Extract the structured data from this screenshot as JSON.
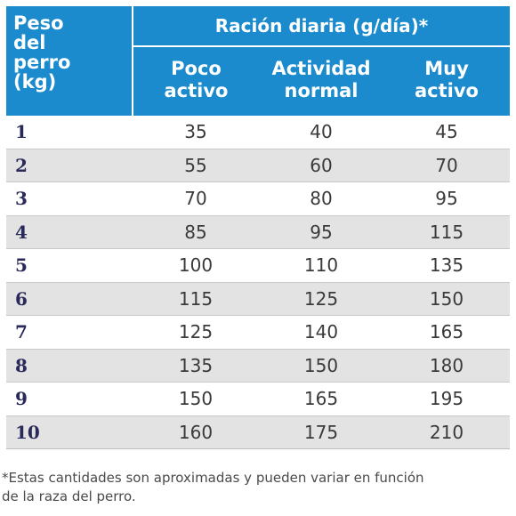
{
  "table": {
    "header": {
      "weight_label": "Peso del perro (kg)",
      "weight_label_lines": [
        "Peso",
        "del",
        "perro",
        "(kg)"
      ],
      "group_label": "Ración diaria (g/día)*",
      "columns": [
        {
          "line1": "Poco",
          "line2": "activo"
        },
        {
          "line1": "Actividad",
          "line2": "normal"
        },
        {
          "line1": "Muy",
          "line2": "activo"
        }
      ]
    },
    "rows": [
      {
        "weight": "1",
        "poco": "35",
        "normal": "40",
        "muy": "45"
      },
      {
        "weight": "2",
        "poco": "55",
        "normal": "60",
        "muy": "70"
      },
      {
        "weight": "3",
        "poco": "70",
        "normal": "80",
        "muy": "95"
      },
      {
        "weight": "4",
        "poco": "85",
        "normal": "95",
        "muy": "115"
      },
      {
        "weight": "5",
        "poco": "100",
        "normal": "110",
        "muy": "135"
      },
      {
        "weight": "6",
        "poco": "115",
        "normal": "125",
        "muy": "150"
      },
      {
        "weight": "7",
        "poco": "125",
        "normal": "140",
        "muy": "165"
      },
      {
        "weight": "8",
        "poco": "135",
        "normal": "150",
        "muy": "180"
      },
      {
        "weight": "9",
        "poco": "150",
        "normal": "165",
        "muy": "195"
      },
      {
        "weight": "10",
        "poco": "160",
        "normal": "175",
        "muy": "210"
      }
    ]
  },
  "footnote": {
    "line1": "*Estas cantidades son aproximadas y pueden variar en función",
    "line2": "de la raza del perro."
  },
  "colors": {
    "header_blue": "#1b8bce",
    "stripe_gray": "#e3e3e3",
    "text_dark": "#3a3a3a"
  }
}
